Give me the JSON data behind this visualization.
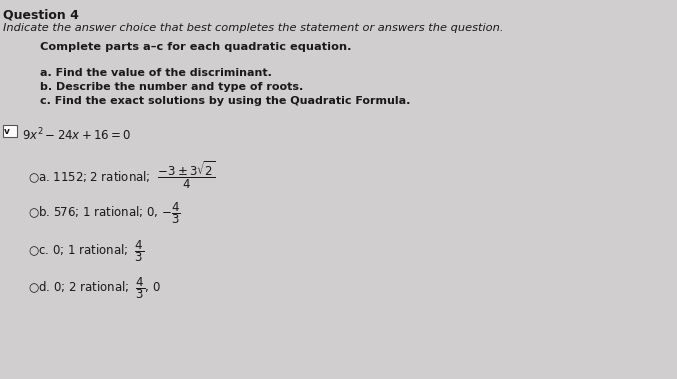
{
  "bg_color": "#d0cece",
  "title_line": "Indicate the answer choice that best completes the statement or answers the question.",
  "subtitle": "Complete parts a–c for each quadratic equation.",
  "instructions": [
    "a. Find the value of the discriminant.",
    "b. Describe the number and type of roots.",
    "c. Find the exact solutions by using the Quadratic Formula."
  ],
  "header": "Question 4",
  "font_color": "#1a1a1a",
  "header_fontsize": 9,
  "title_fontsize": 8.2,
  "subtitle_fontsize": 8.2,
  "instr_fontsize": 8.0,
  "eq_fontsize": 8.5,
  "choice_fontsize": 8.5
}
